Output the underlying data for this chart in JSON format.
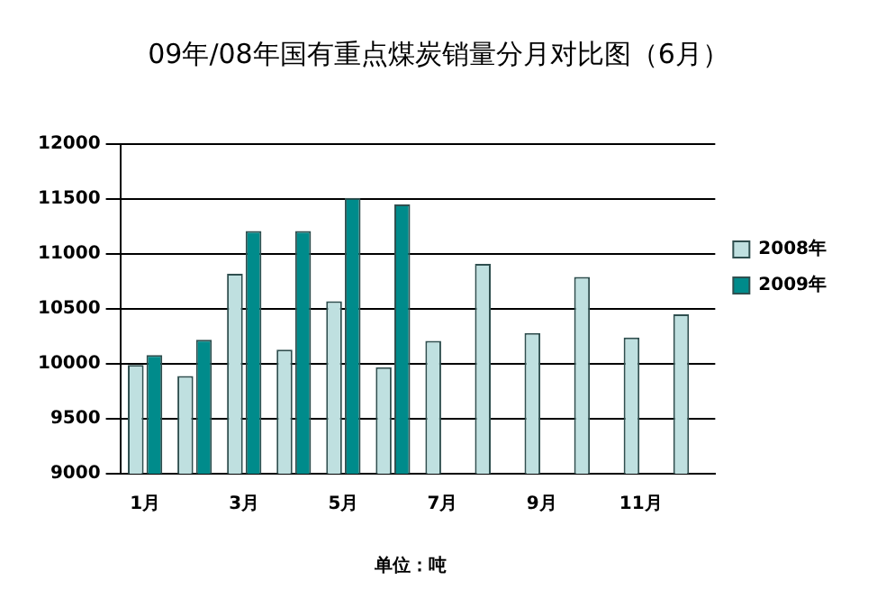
{
  "chart_data": {
    "type": "bar",
    "title": "09年/08年国有重点煤炭销量分月对比图（6月）",
    "categories": [
      "1月",
      null,
      "3月",
      null,
      "5月",
      null,
      "7月",
      null,
      "9月",
      null,
      "11月",
      null
    ],
    "series": [
      {
        "name": "2008年",
        "color": "#bfe0e0",
        "values": [
          9990,
          9890,
          10820,
          10130,
          10570,
          9970,
          10210,
          10910,
          10280,
          10790,
          10240,
          10450
        ]
      },
      {
        "name": "2009年",
        "color": "#008b8b",
        "values": [
          10080,
          10220,
          11210,
          11210,
          11510,
          11450,
          null,
          null,
          null,
          null,
          null,
          null
        ]
      }
    ],
    "ylim": [
      9000,
      12000
    ],
    "yticks": [
      9000,
      9500,
      10000,
      10500,
      11000,
      11500,
      12000
    ],
    "grid": "y",
    "legend": "right",
    "annotations": [
      "单位：吨"
    ]
  }
}
